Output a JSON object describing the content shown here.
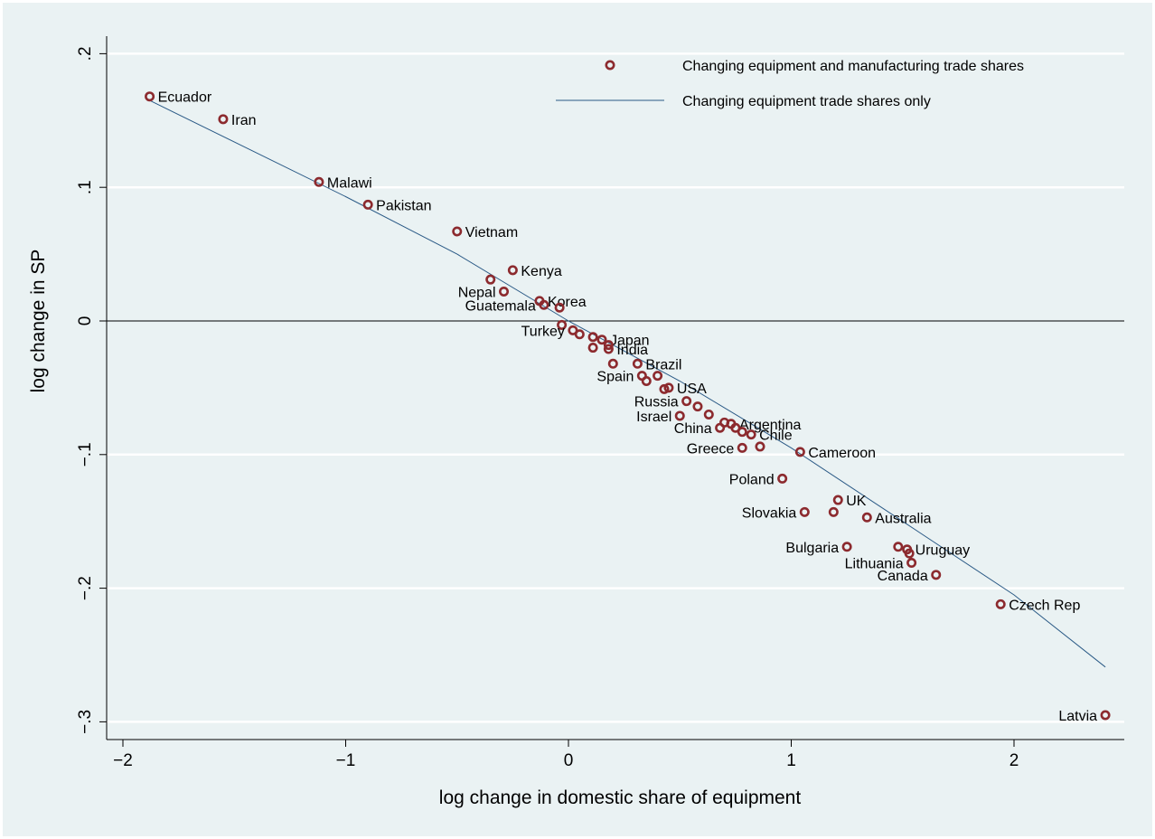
{
  "chart_data": {
    "type": "scatter",
    "xlabel": "log change in domestic share of equipment",
    "ylabel": "log change in SP",
    "xlim": [
      -2.05,
      2.5
    ],
    "ylim": [
      -0.32,
      0.213
    ],
    "x_ticks": [
      -2,
      -1,
      0,
      1,
      2
    ],
    "x_tick_labels": [
      "−2",
      "−1",
      "0",
      "1",
      "2"
    ],
    "y_ticks": [
      0.2,
      0.1,
      0,
      -0.1,
      -0.2,
      -0.3
    ],
    "y_tick_labels": [
      ".2",
      ".1",
      "0",
      "−.1",
      "−.2",
      "−.3"
    ],
    "grid": true,
    "zero_line": true,
    "legend": {
      "position": "top-right",
      "entries": [
        {
          "label": "Changing equipment and manufacturing trade shares",
          "kind": "marker"
        },
        {
          "label": "Changing equipment trade shares only",
          "kind": "line"
        }
      ]
    },
    "colors": {
      "marker": "#8c2a2e",
      "line": "#2b5a86",
      "background": "#eaf2f3",
      "grid": "#ffffff"
    },
    "series": [
      {
        "name": "Changing equipment and manufacturing trade shares",
        "points": [
          {
            "x": -1.88,
            "y": 0.168,
            "label": "Ecuador",
            "side": "right"
          },
          {
            "x": -1.55,
            "y": 0.151,
            "label": "Iran",
            "side": "right"
          },
          {
            "x": -1.12,
            "y": 0.104,
            "label": "Malawi",
            "side": "right"
          },
          {
            "x": -0.9,
            "y": 0.087,
            "label": "Pakistan",
            "side": "right"
          },
          {
            "x": -0.5,
            "y": 0.067,
            "label": "Vietnam",
            "side": "right"
          },
          {
            "x": -0.25,
            "y": 0.038,
            "label": "Kenya",
            "side": "right"
          },
          {
            "x": -0.35,
            "y": 0.031,
            "label": "",
            "side": "right"
          },
          {
            "x": -0.29,
            "y": 0.022,
            "label": "Nepal",
            "side": "left"
          },
          {
            "x": -0.13,
            "y": 0.015,
            "label": "Korea",
            "side": "right"
          },
          {
            "x": -0.11,
            "y": 0.012,
            "label": "Guatemala",
            "side": "left"
          },
          {
            "x": -0.04,
            "y": 0.01,
            "label": "",
            "side": "right"
          },
          {
            "x": -0.03,
            "y": -0.003,
            "label": "",
            "side": "right"
          },
          {
            "x": 0.02,
            "y": -0.007,
            "label": "Turkey",
            "side": "left"
          },
          {
            "x": 0.05,
            "y": -0.01,
            "label": "",
            "side": "right"
          },
          {
            "x": 0.11,
            "y": -0.012,
            "label": "",
            "side": "right"
          },
          {
            "x": 0.15,
            "y": -0.014,
            "label": "Japan",
            "side": "right"
          },
          {
            "x": 0.18,
            "y": -0.018,
            "label": "",
            "side": "right"
          },
          {
            "x": 0.18,
            "y": -0.021,
            "label": "India",
            "side": "right"
          },
          {
            "x": 0.11,
            "y": -0.02,
            "label": "",
            "side": "right"
          },
          {
            "x": 0.2,
            "y": -0.032,
            "label": "",
            "side": "right"
          },
          {
            "x": 0.31,
            "y": -0.032,
            "label": "Brazil",
            "side": "right"
          },
          {
            "x": 0.33,
            "y": -0.041,
            "label": "Spain",
            "side": "left"
          },
          {
            "x": 0.35,
            "y": -0.045,
            "label": "",
            "side": "right"
          },
          {
            "x": 0.4,
            "y": -0.041,
            "label": "",
            "side": "right"
          },
          {
            "x": 0.43,
            "y": -0.051,
            "label": "",
            "side": "right"
          },
          {
            "x": 0.45,
            "y": -0.05,
            "label": "USA",
            "side": "right"
          },
          {
            "x": 0.53,
            "y": -0.06,
            "label": "Russia",
            "side": "left"
          },
          {
            "x": 0.58,
            "y": -0.064,
            "label": "",
            "side": "right"
          },
          {
            "x": 0.63,
            "y": -0.07,
            "label": "",
            "side": "right"
          },
          {
            "x": 0.5,
            "y": -0.071,
            "label": "Israel",
            "side": "left"
          },
          {
            "x": 0.68,
            "y": -0.08,
            "label": "China",
            "side": "left"
          },
          {
            "x": 0.7,
            "y": -0.076,
            "label": "",
            "side": "right"
          },
          {
            "x": 0.73,
            "y": -0.077,
            "label": "Argentina",
            "side": "right"
          },
          {
            "x": 0.75,
            "y": -0.08,
            "label": "",
            "side": "right"
          },
          {
            "x": 0.78,
            "y": -0.083,
            "label": "",
            "side": "right"
          },
          {
            "x": 0.82,
            "y": -0.085,
            "label": "Chile",
            "side": "right"
          },
          {
            "x": 0.78,
            "y": -0.095,
            "label": "Greece",
            "side": "left"
          },
          {
            "x": 0.86,
            "y": -0.094,
            "label": "",
            "side": "right"
          },
          {
            "x": 1.04,
            "y": -0.098,
            "label": "Cameroon",
            "side": "right"
          },
          {
            "x": 0.96,
            "y": -0.118,
            "label": "Poland",
            "side": "left"
          },
          {
            "x": 1.21,
            "y": -0.134,
            "label": "UK",
            "side": "right"
          },
          {
            "x": 1.06,
            "y": -0.143,
            "label": "Slovakia",
            "side": "left"
          },
          {
            "x": 1.19,
            "y": -0.143,
            "label": "",
            "side": "right"
          },
          {
            "x": 1.34,
            "y": -0.147,
            "label": "Australia",
            "side": "right"
          },
          {
            "x": 1.25,
            "y": -0.169,
            "label": "Bulgaria",
            "side": "left"
          },
          {
            "x": 1.48,
            "y": -0.169,
            "label": "",
            "side": "right"
          },
          {
            "x": 1.52,
            "y": -0.171,
            "label": "Uruguay",
            "side": "right"
          },
          {
            "x": 1.53,
            "y": -0.174,
            "label": "",
            "side": "right"
          },
          {
            "x": 1.54,
            "y": -0.181,
            "label": "Lithuania",
            "side": "left"
          },
          {
            "x": 1.65,
            "y": -0.19,
            "label": "Canada",
            "side": "left"
          },
          {
            "x": 1.94,
            "y": -0.212,
            "label": "Czech Rep",
            "side": "right"
          },
          {
            "x": 2.41,
            "y": -0.295,
            "label": "Latvia",
            "side": "left"
          }
        ]
      },
      {
        "name": "Changing equipment trade shares only",
        "line": [
          [
            -1.88,
            0.165
          ],
          [
            -1.0,
            0.093
          ],
          [
            -0.5,
            0.05
          ],
          [
            0.0,
            0.0
          ],
          [
            0.5,
            -0.045
          ],
          [
            1.0,
            -0.095
          ],
          [
            1.5,
            -0.15
          ],
          [
            2.0,
            -0.205
          ],
          [
            2.41,
            -0.259
          ]
        ]
      }
    ]
  }
}
